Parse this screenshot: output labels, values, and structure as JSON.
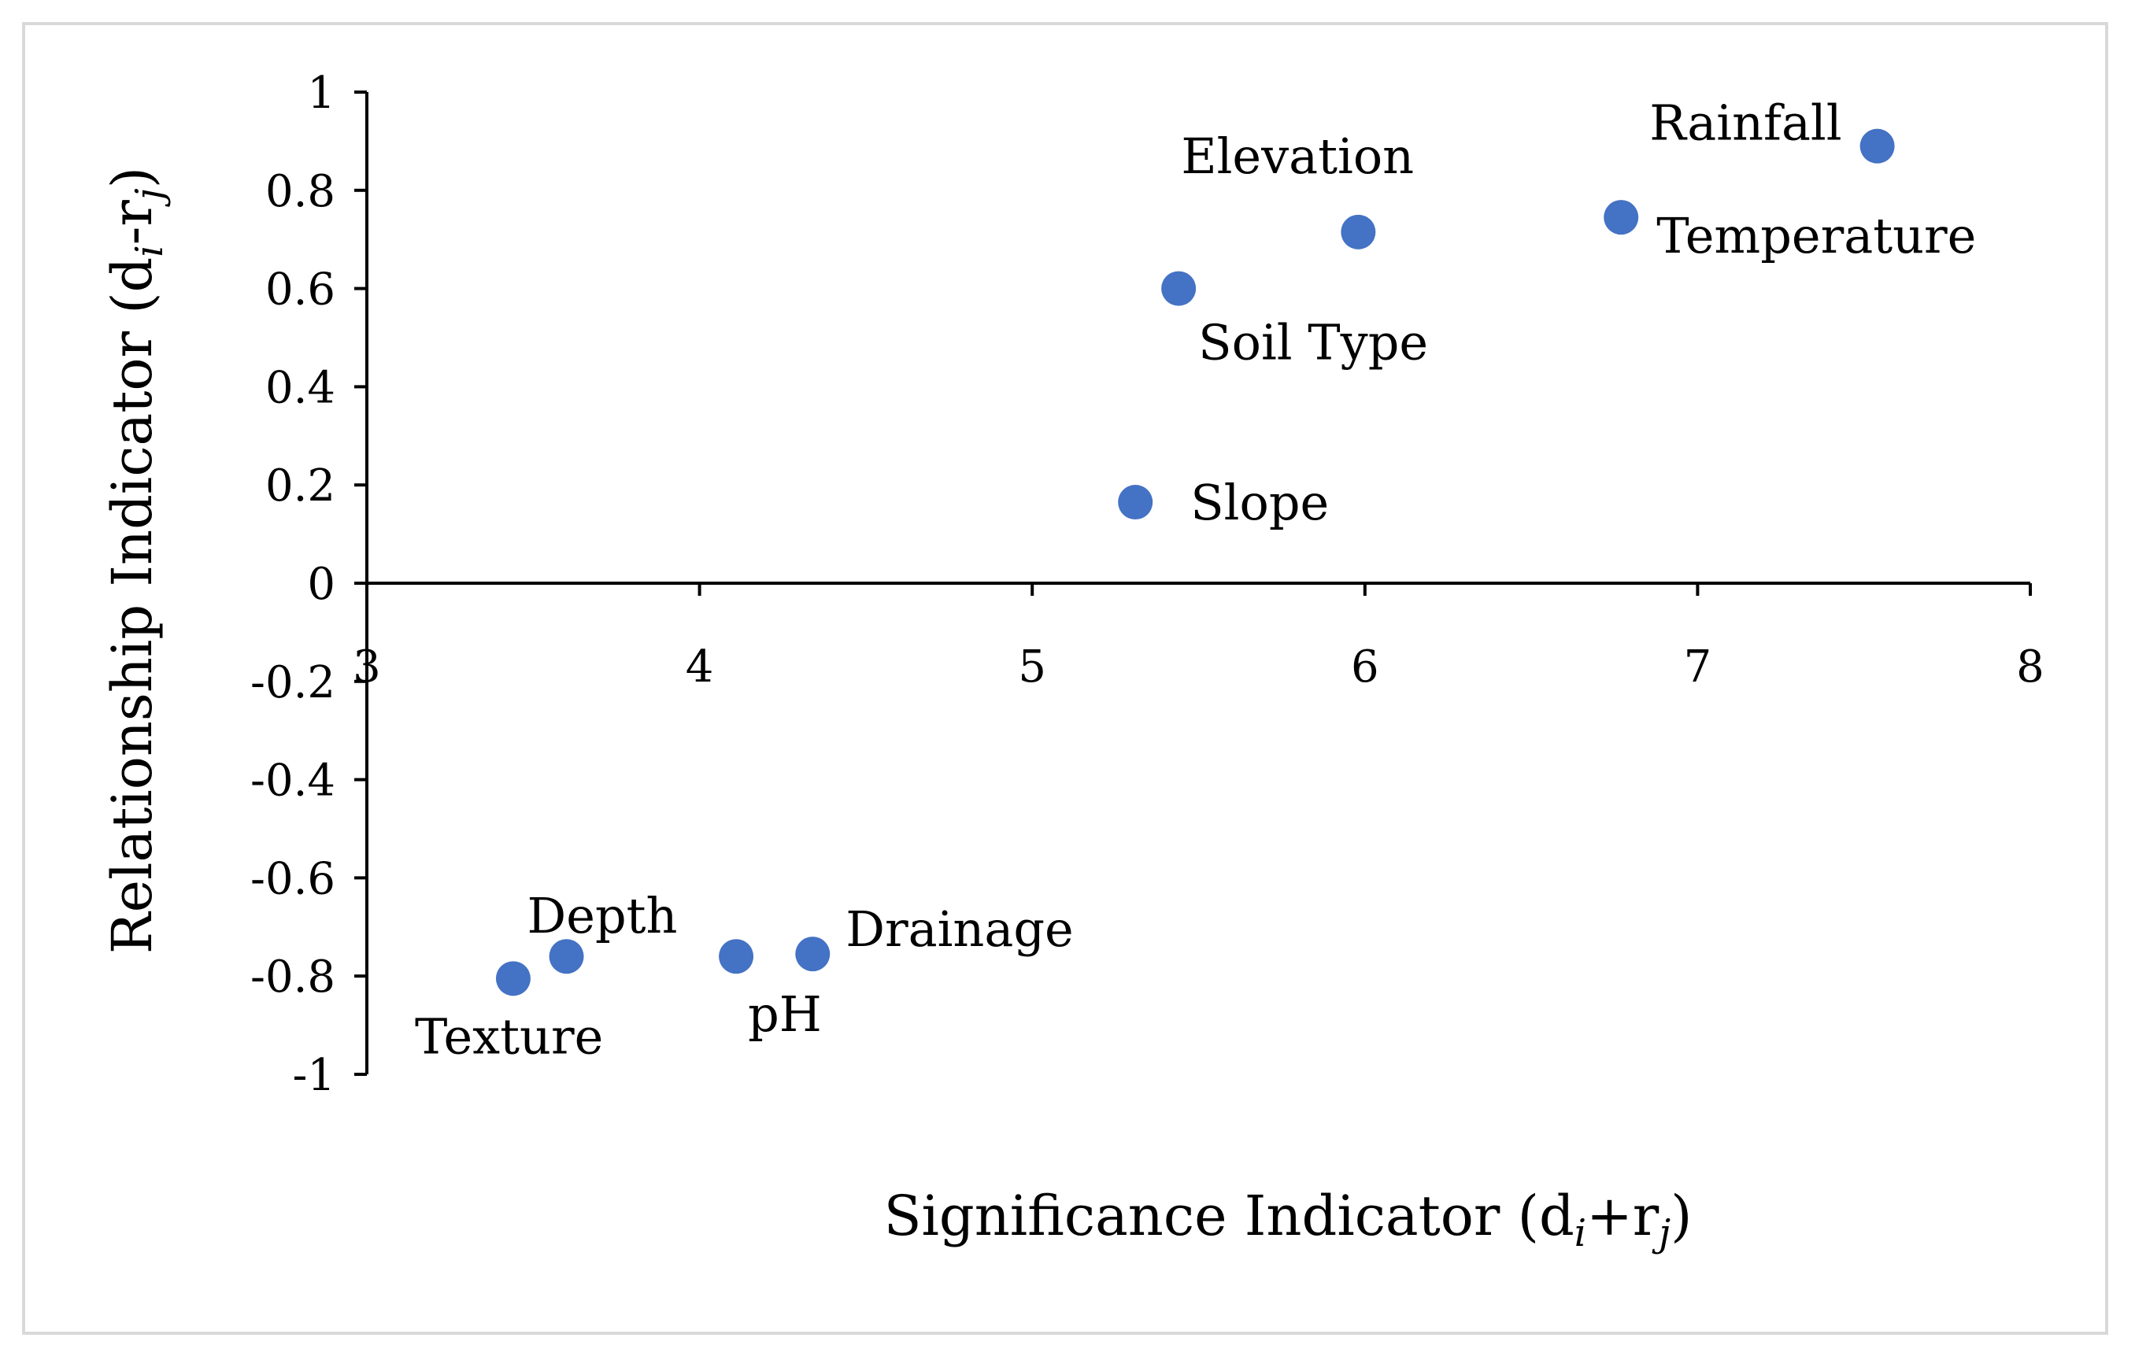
{
  "chart_data": {
    "type": "scatter",
    "title": "",
    "xlabel": {
      "main": "Significance Indicator (d",
      "sub1": "i",
      "mid": "+r",
      "sub2": "j",
      "end": ")"
    },
    "ylabel": {
      "main": "Relationship Indicator (d",
      "sub1": "i",
      "mid": "-r",
      "sub2": "j",
      "end": ")"
    },
    "xlim": [
      3,
      8
    ],
    "ylim": [
      -1,
      1
    ],
    "x_ticks": [
      "3",
      "4",
      "5",
      "6",
      "7",
      "8"
    ],
    "y_ticks": [
      "1",
      "0.8",
      "0.6",
      "0.4",
      "0.2",
      "0",
      "-0.2",
      "-0.4",
      "-0.6",
      "-0.8",
      "-1"
    ],
    "marker_color": "#4472C4",
    "points": [
      {
        "name": "Rainfall",
        "x": 7.54,
        "y": 0.89
      },
      {
        "name": "Temperature",
        "x": 6.77,
        "y": 0.745
      },
      {
        "name": "Elevation",
        "x": 5.98,
        "y": 0.715
      },
      {
        "name": "Soil Type",
        "x": 5.44,
        "y": 0.6
      },
      {
        "name": "Slope",
        "x": 5.31,
        "y": 0.165
      },
      {
        "name": "Texture",
        "x": 3.44,
        "y": -0.805
      },
      {
        "name": "Depth",
        "x": 3.6,
        "y": -0.76
      },
      {
        "name": "pH",
        "x": 4.11,
        "y": -0.76
      },
      {
        "name": "Drainage",
        "x": 4.34,
        "y": -0.755
      }
    ]
  }
}
